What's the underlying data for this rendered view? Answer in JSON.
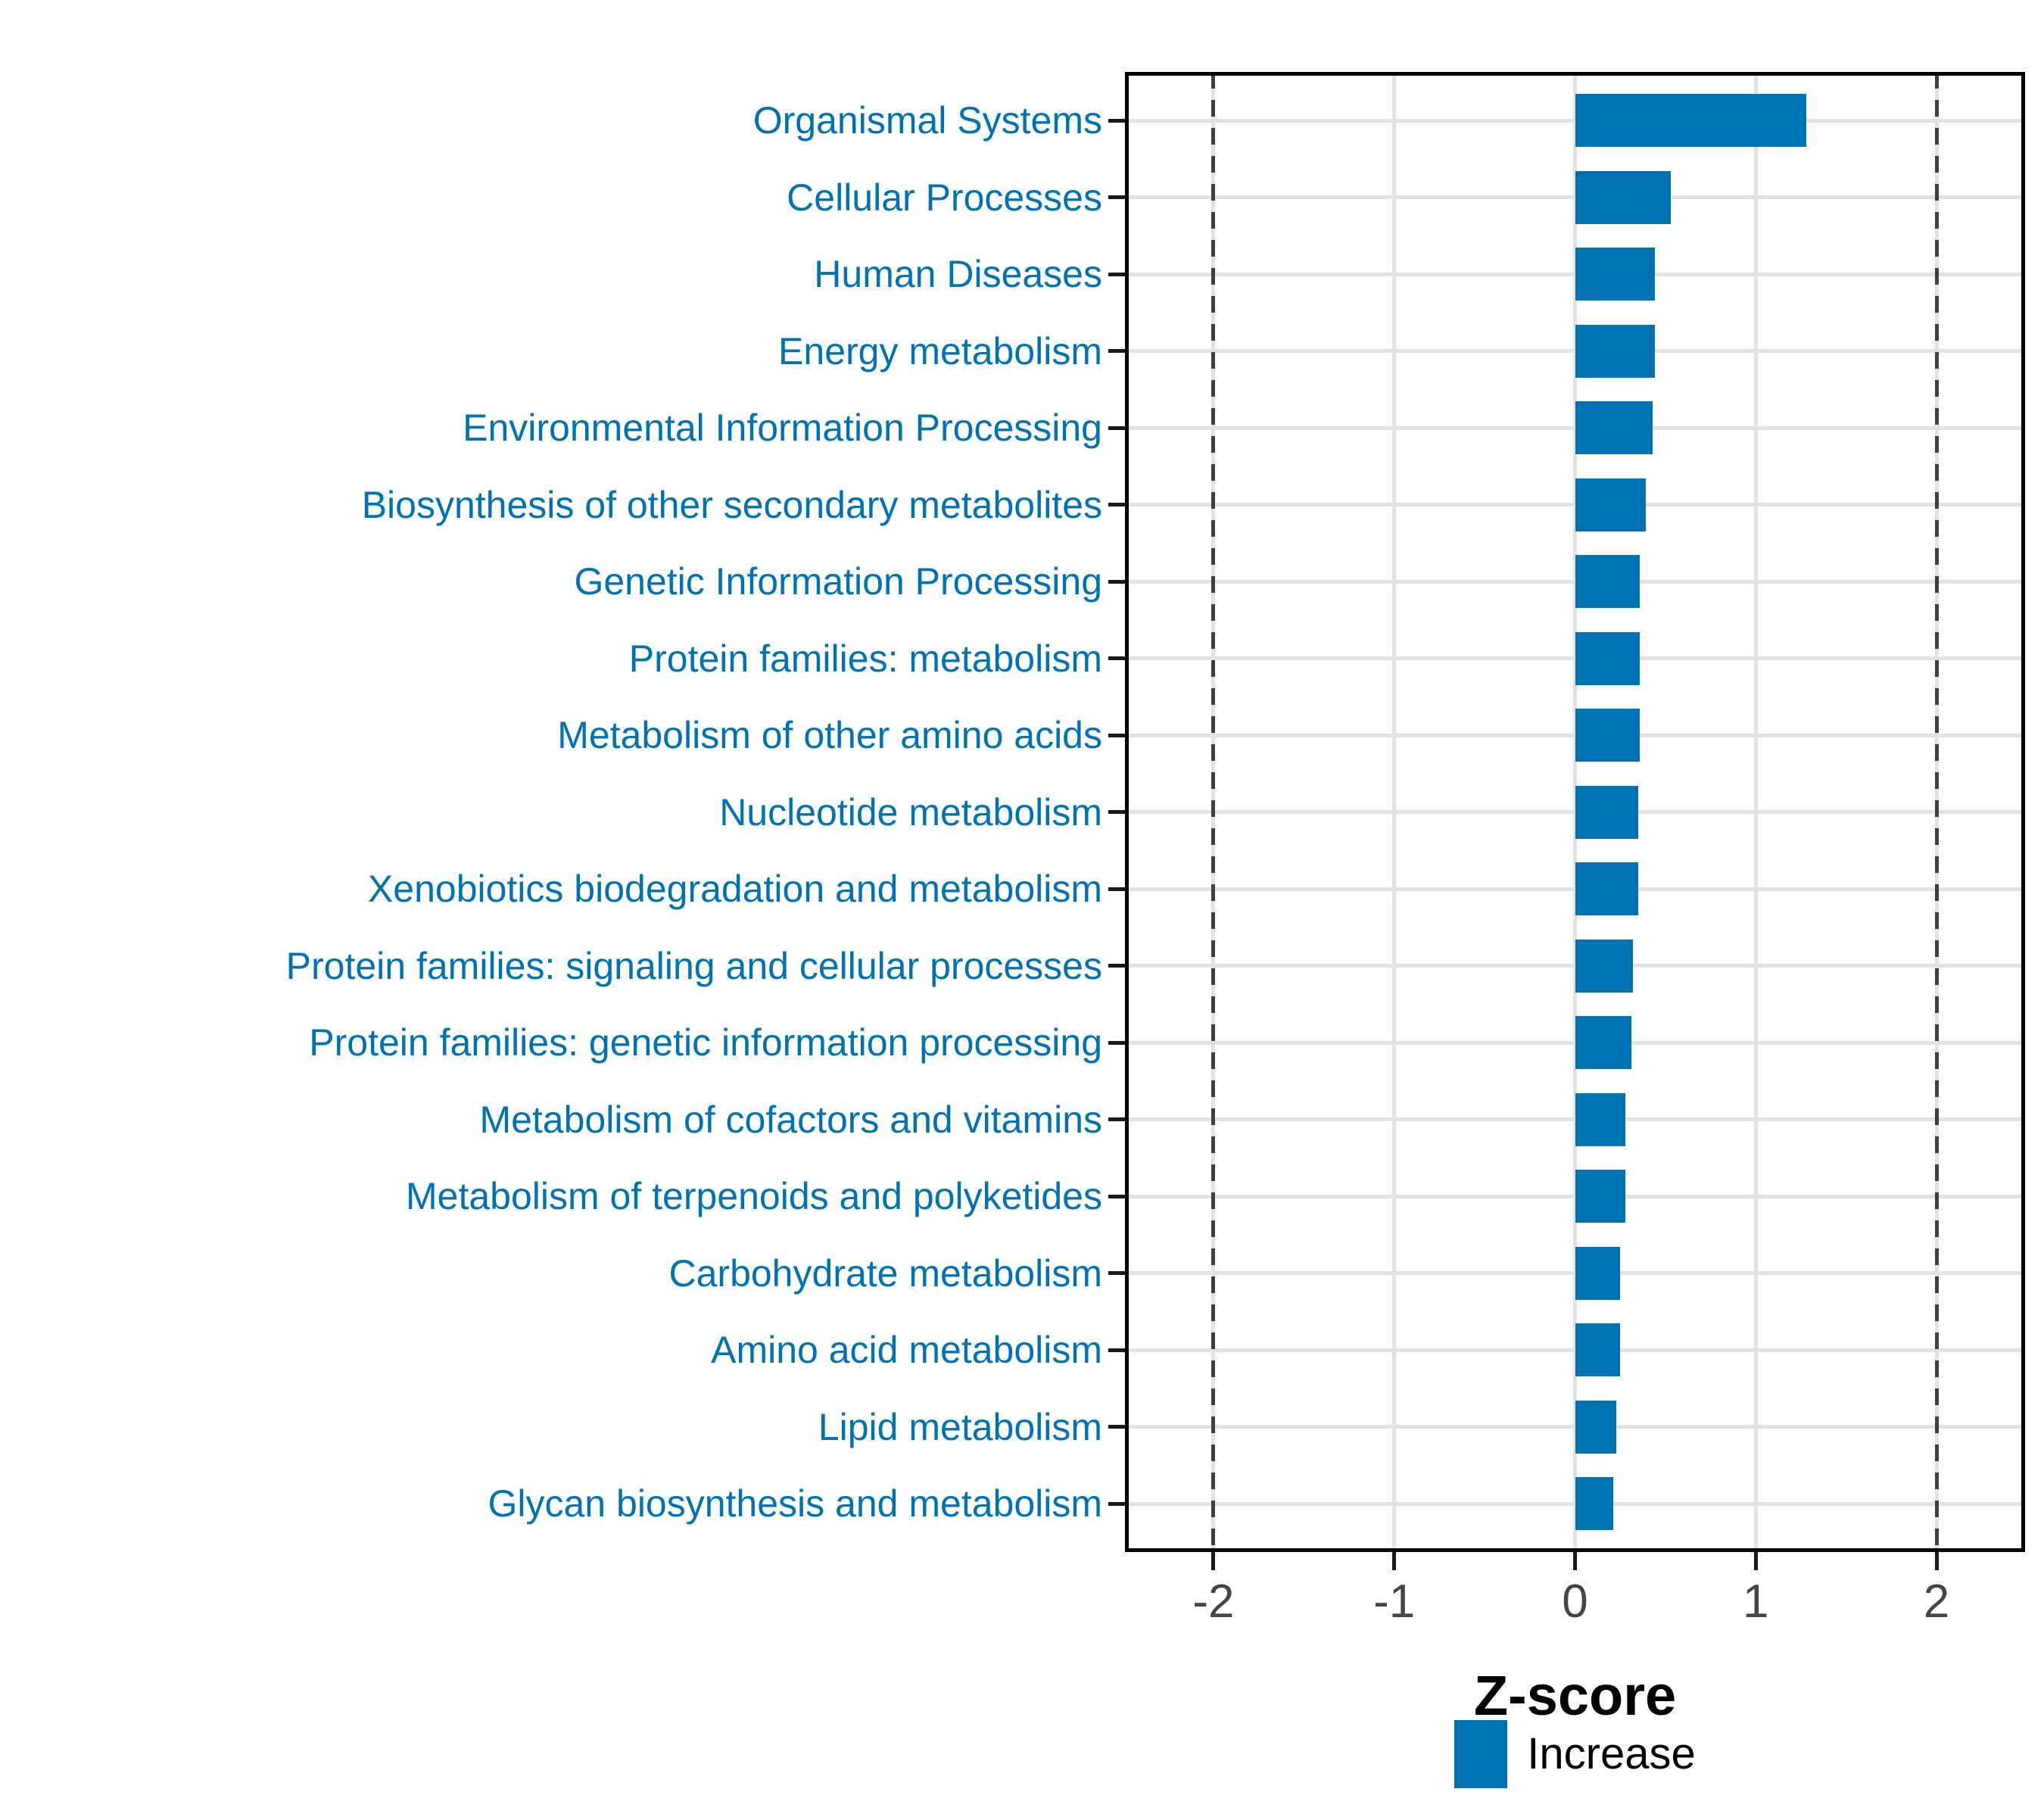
{
  "chart_data": {
    "type": "bar",
    "orientation": "horizontal",
    "categories": [
      "Organismal Systems",
      "Cellular Processes",
      "Human Diseases",
      "Energy metabolism",
      "Environmental Information Processing",
      "Biosynthesis of other secondary metabolites",
      "Genetic Information Processing",
      "Protein families: metabolism",
      "Metabolism of other amino acids",
      "Nucleotide metabolism",
      "Xenobiotics biodegradation and metabolism",
      "Protein families: signaling and cellular processes",
      "Protein families: genetic information processing",
      "Metabolism of cofactors and vitamins",
      "Metabolism of terpenoids and polyketides",
      "Carbohydrate metabolism",
      "Amino acid metabolism",
      "Lipid metabolism",
      "Glycan biosynthesis and metabolism"
    ],
    "series": [
      {
        "name": "Increase",
        "values": [
          1.28,
          0.53,
          0.44,
          0.44,
          0.43,
          0.39,
          0.36,
          0.36,
          0.36,
          0.35,
          0.35,
          0.32,
          0.31,
          0.28,
          0.28,
          0.25,
          0.25,
          0.23,
          0.21
        ]
      }
    ],
    "xlabel": "Z-score",
    "ylabel": "",
    "title": "",
    "x_ticks": [
      -2,
      -1,
      0,
      1,
      2
    ],
    "xlim": [
      -2.49,
      2.49
    ],
    "reference_lines": [
      -2,
      2
    ],
    "grid": "major",
    "legend_position": "bottom"
  },
  "legend": {
    "increase_label": "Increase"
  },
  "colors": {
    "bar_fill": "#0072b2",
    "category_label": "#0072b2",
    "gridline": "#e2e2e2",
    "reference_line": "#3f3f3f",
    "axis_frame": "#000000",
    "tick_label": "#454545"
  }
}
